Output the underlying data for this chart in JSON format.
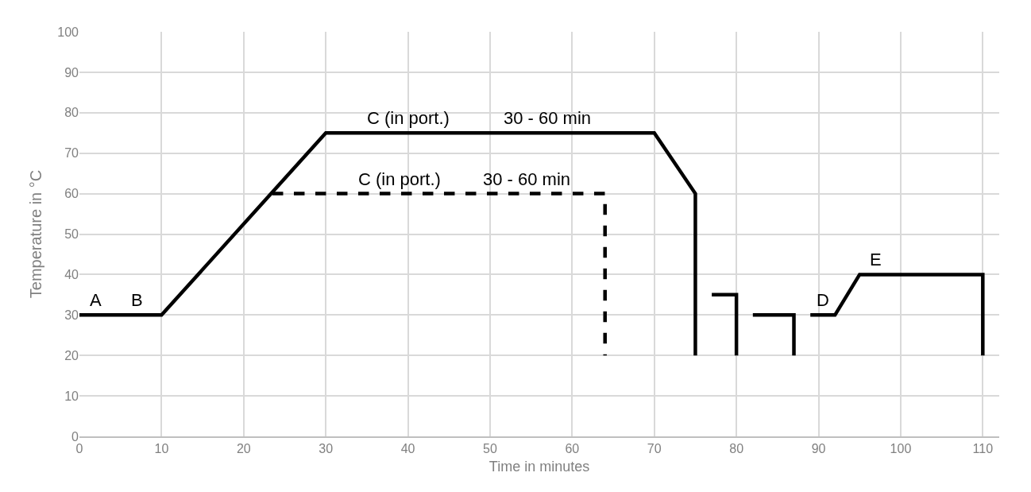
{
  "chart_data": {
    "type": "line",
    "xlabel": "Time in minutes",
    "ylabel": "Temperature in °C",
    "xlim": [
      0,
      112
    ],
    "xticks": [
      0,
      10,
      20,
      30,
      40,
      50,
      60,
      70,
      80,
      90,
      100,
      110
    ],
    "ylim": [
      0,
      100
    ],
    "yticks": [
      0,
      10,
      20,
      30,
      40,
      50,
      60,
      70,
      80,
      90,
      100
    ],
    "grid": true,
    "marker": "none",
    "series": [
      {
        "color": "#000000",
        "line_style": "solid",
        "x": [
          0,
          10,
          30,
          70,
          75,
          75
        ],
        "values": [
          30,
          30,
          75,
          75,
          60,
          20
        ]
      },
      {
        "color": "#000000",
        "line_style": "dashed",
        "x": [
          23.5,
          64,
          64
        ],
        "values": [
          60,
          60,
          20
        ]
      },
      {
        "color": "#000000",
        "line_style": "solid",
        "x": [
          77,
          80,
          80
        ],
        "values": [
          35,
          35,
          20
        ]
      },
      {
        "color": "#000000",
        "line_style": "solid",
        "x": [
          82,
          87,
          87
        ],
        "values": [
          30,
          30,
          20
        ]
      },
      {
        "color": "#000000",
        "line_style": "solid",
        "x": [
          89,
          92,
          95,
          110,
          110
        ],
        "values": [
          30,
          30,
          40,
          40,
          20
        ]
      }
    ],
    "annotations": [
      {
        "text": "A",
        "x": 2,
        "y": 30
      },
      {
        "text": "B",
        "x": 7,
        "y": 30
      },
      {
        "text": "C (in port.)",
        "x": 40,
        "y": 75
      },
      {
        "text": "30 - 60 min",
        "x": 57,
        "y": 75
      },
      {
        "text": "C (in port.)",
        "x": 39,
        "y": 60
      },
      {
        "text": "30 - 60 min",
        "x": 54.5,
        "y": 60
      },
      {
        "text": "D",
        "x": 90.5,
        "y": 30
      },
      {
        "text": "E",
        "x": 97,
        "y": 40
      }
    ]
  }
}
